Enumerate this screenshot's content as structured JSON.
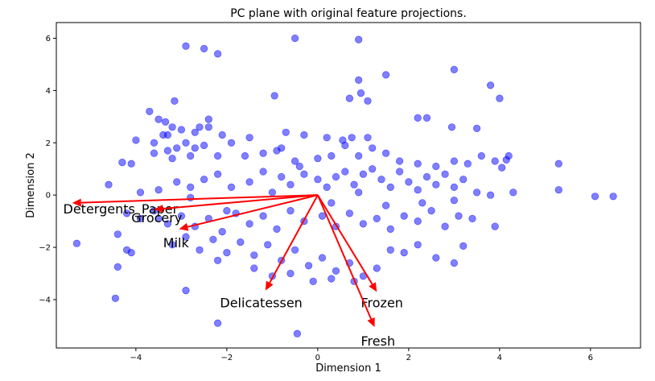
{
  "chart_data": {
    "type": "scatter",
    "title": "PC plane with original feature projections.",
    "xlabel": "Dimension 1",
    "ylabel": "Dimension 2",
    "xlim": [
      -5.75,
      7.1
    ],
    "ylim": [
      -5.85,
      6.6
    ],
    "xticks": [
      -4,
      -2,
      0,
      2,
      4,
      6
    ],
    "yticks": [
      -4,
      -2,
      0,
      2,
      4,
      6
    ],
    "grid": false,
    "colors": {
      "points": "#0000ff",
      "arrows": "#ff0000"
    },
    "points": [
      [
        -2.9,
        5.7
      ],
      [
        -2.5,
        5.6
      ],
      [
        -2.2,
        5.4
      ],
      [
        -0.5,
        6.0
      ],
      [
        0.9,
        5.95
      ],
      [
        3.0,
        4.8
      ],
      [
        3.8,
        4.2
      ],
      [
        4.0,
        3.7
      ],
      [
        1.5,
        4.6
      ],
      [
        0.9,
        4.4
      ],
      [
        0.95,
        3.9
      ],
      [
        0.7,
        3.7
      ],
      [
        1.1,
        3.6
      ],
      [
        -0.95,
        3.8
      ],
      [
        -3.15,
        3.6
      ],
      [
        -3.7,
        3.2
      ],
      [
        -3.35,
        2.8
      ],
      [
        -3.5,
        2.9
      ],
      [
        -2.4,
        2.9
      ],
      [
        -2.4,
        2.6
      ],
      [
        -3.2,
        2.6
      ],
      [
        -3.0,
        2.5
      ],
      [
        -2.7,
        2.4
      ],
      [
        -2.6,
        2.6
      ],
      [
        -2.1,
        2.3
      ],
      [
        -3.3,
        2.3
      ],
      [
        -3.6,
        2.0
      ],
      [
        -4.0,
        2.1
      ],
      [
        -3.4,
        2.3
      ],
      [
        -0.7,
        2.4
      ],
      [
        -0.3,
        2.3
      ],
      [
        0.2,
        2.2
      ],
      [
        0.55,
        2.1
      ],
      [
        0.75,
        2.2
      ],
      [
        1.1,
        2.2
      ],
      [
        2.2,
        2.95
      ],
      [
        2.4,
        2.95
      ],
      [
        2.95,
        2.6
      ],
      [
        3.5,
        2.55
      ],
      [
        -1.5,
        2.2
      ],
      [
        -1.2,
        1.6
      ],
      [
        -0.8,
        1.8
      ],
      [
        -1.9,
        2.0
      ],
      [
        -2.5,
        1.9
      ],
      [
        -2.9,
        2.0
      ],
      [
        -3.3,
        1.7
      ],
      [
        -3.1,
        1.8
      ],
      [
        -2.8,
        1.5
      ],
      [
        -3.6,
        1.6
      ],
      [
        -4.1,
        1.2
      ],
      [
        -4.3,
        1.25
      ],
      [
        -3.2,
        1.4
      ],
      [
        -2.7,
        1.8
      ],
      [
        -2.2,
        1.5
      ],
      [
        -1.6,
        1.5
      ],
      [
        -0.9,
        1.7
      ],
      [
        -0.5,
        1.3
      ],
      [
        -0.4,
        1.1
      ],
      [
        0.0,
        1.4
      ],
      [
        0.3,
        1.5
      ],
      [
        0.6,
        1.9
      ],
      [
        0.9,
        1.5
      ],
      [
        1.2,
        1.8
      ],
      [
        1.5,
        1.6
      ],
      [
        1.8,
        1.3
      ],
      [
        2.2,
        1.2
      ],
      [
        2.6,
        1.1
      ],
      [
        3.0,
        1.3
      ],
      [
        3.3,
        1.2
      ],
      [
        3.6,
        1.5
      ],
      [
        3.9,
        1.3
      ],
      [
        4.2,
        1.5
      ],
      [
        4.15,
        1.35
      ],
      [
        4.05,
        1.05
      ],
      [
        5.3,
        1.2
      ],
      [
        -4.6,
        0.4
      ],
      [
        -3.9,
        0.1
      ],
      [
        -3.5,
        0.2
      ],
      [
        -3.1,
        0.5
      ],
      [
        -2.8,
        0.3
      ],
      [
        -2.5,
        0.6
      ],
      [
        -2.2,
        0.8
      ],
      [
        -1.9,
        0.3
      ],
      [
        -1.5,
        0.5
      ],
      [
        -1.2,
        0.9
      ],
      [
        -0.8,
        0.7
      ],
      [
        -0.6,
        0.4
      ],
      [
        -0.3,
        0.8
      ],
      [
        0.0,
        0.6
      ],
      [
        0.2,
        0.3
      ],
      [
        0.4,
        0.7
      ],
      [
        0.6,
        0.9
      ],
      [
        0.8,
        0.4
      ],
      [
        1.0,
        0.8
      ],
      [
        1.2,
        1.0
      ],
      [
        1.4,
        0.6
      ],
      [
        1.6,
        0.3
      ],
      [
        1.8,
        0.9
      ],
      [
        2.0,
        0.5
      ],
      [
        2.2,
        0.2
      ],
      [
        2.4,
        0.7
      ],
      [
        2.6,
        0.4
      ],
      [
        2.8,
        0.8
      ],
      [
        3.0,
        0.3
      ],
      [
        3.2,
        0.6
      ],
      [
        3.5,
        0.1
      ],
      [
        3.8,
        0.0
      ],
      [
        4.3,
        0.1
      ],
      [
        5.3,
        0.2
      ],
      [
        6.1,
        -0.05
      ],
      [
        6.5,
        -0.05
      ],
      [
        -4.2,
        -0.7
      ],
      [
        -3.9,
        -0.9
      ],
      [
        -3.6,
        -0.6
      ],
      [
        -3.3,
        -1.1
      ],
      [
        -3.0,
        -0.8
      ],
      [
        -2.7,
        -1.2
      ],
      [
        -2.4,
        -0.9
      ],
      [
        -2.1,
        -1.4
      ],
      [
        -1.8,
        -0.7
      ],
      [
        -1.5,
        -1.1
      ],
      [
        -1.2,
        -0.8
      ],
      [
        -0.9,
        -1.3
      ],
      [
        -0.6,
        -0.6
      ],
      [
        -0.3,
        -1.0
      ],
      [
        0.1,
        -0.8
      ],
      [
        0.4,
        -1.2
      ],
      [
        0.7,
        -0.7
      ],
      [
        1.0,
        -1.1
      ],
      [
        1.3,
        -0.9
      ],
      [
        1.6,
        -1.3
      ],
      [
        1.9,
        -0.8
      ],
      [
        2.2,
        -1.0
      ],
      [
        2.5,
        -0.6
      ],
      [
        2.8,
        -1.2
      ],
      [
        3.1,
        -0.8
      ],
      [
        3.4,
        -0.9
      ],
      [
        3.9,
        -1.2
      ],
      [
        -5.3,
        -1.85
      ],
      [
        -4.4,
        -1.5
      ],
      [
        -4.2,
        -2.1
      ],
      [
        -4.1,
        -2.2
      ],
      [
        -3.2,
        -1.9
      ],
      [
        -2.9,
        -1.6
      ],
      [
        -2.6,
        -2.1
      ],
      [
        -2.3,
        -1.7
      ],
      [
        -2.0,
        -2.2
      ],
      [
        -1.7,
        -1.8
      ],
      [
        -1.4,
        -2.3
      ],
      [
        -1.1,
        -1.9
      ],
      [
        -0.8,
        -2.5
      ],
      [
        -0.5,
        -2.1
      ],
      [
        -0.2,
        -2.7
      ],
      [
        0.1,
        -2.4
      ],
      [
        0.4,
        -2.9
      ],
      [
        0.7,
        -2.6
      ],
      [
        1.0,
        -3.1
      ],
      [
        1.3,
        -2.8
      ],
      [
        1.6,
        -2.1
      ],
      [
        1.9,
        -2.2
      ],
      [
        2.2,
        -1.9
      ],
      [
        2.6,
        -2.4
      ],
      [
        3.0,
        -2.6
      ],
      [
        3.2,
        -1.95
      ],
      [
        -4.4,
        -2.75
      ],
      [
        -2.2,
        -2.5
      ],
      [
        -1.4,
        -2.8
      ],
      [
        -0.6,
        -3.0
      ],
      [
        -0.1,
        -3.3
      ],
      [
        0.3,
        -3.2
      ],
      [
        0.8,
        -3.3
      ],
      [
        -4.45,
        -3.95
      ],
      [
        -2.9,
        -3.65
      ],
      [
        -2.2,
        -4.9
      ],
      [
        -0.45,
        -5.3
      ],
      [
        -1.0,
        -3.1
      ],
      [
        -3.5,
        -0.9
      ],
      [
        -2.0,
        -0.6
      ],
      [
        0.3,
        -0.3
      ],
      [
        1.5,
        -0.4
      ],
      [
        2.3,
        -0.3
      ],
      [
        3.0,
        -0.2
      ],
      [
        -1.0,
        0.1
      ],
      [
        -2.8,
        -0.1
      ],
      [
        0.9,
        0.1
      ]
    ],
    "features": [
      {
        "name": "Detergents_Paper",
        "x": -5.4,
        "y": -0.3
      },
      {
        "name": "Grocery",
        "x": -3.6,
        "y": -0.55
      },
      {
        "name": "Milk",
        "x": -3.05,
        "y": -1.3
      },
      {
        "name": "Delicatessen",
        "x": -1.15,
        "y": -3.65
      },
      {
        "name": "Frozen",
        "x": 1.3,
        "y": -3.7
      },
      {
        "name": "Fresh",
        "x": 1.25,
        "y": -5.05
      }
    ],
    "label_offsets": [
      {
        "dx": -5.6,
        "dy": -0.7
      },
      {
        "dx": -4.1,
        "dy": -1.05
      },
      {
        "dx": -3.4,
        "dy": -2.0
      },
      {
        "dx": -2.15,
        "dy": -4.3
      },
      {
        "dx": 0.95,
        "dy": -4.3
      },
      {
        "dx": 0.95,
        "dy": -5.75
      }
    ]
  }
}
